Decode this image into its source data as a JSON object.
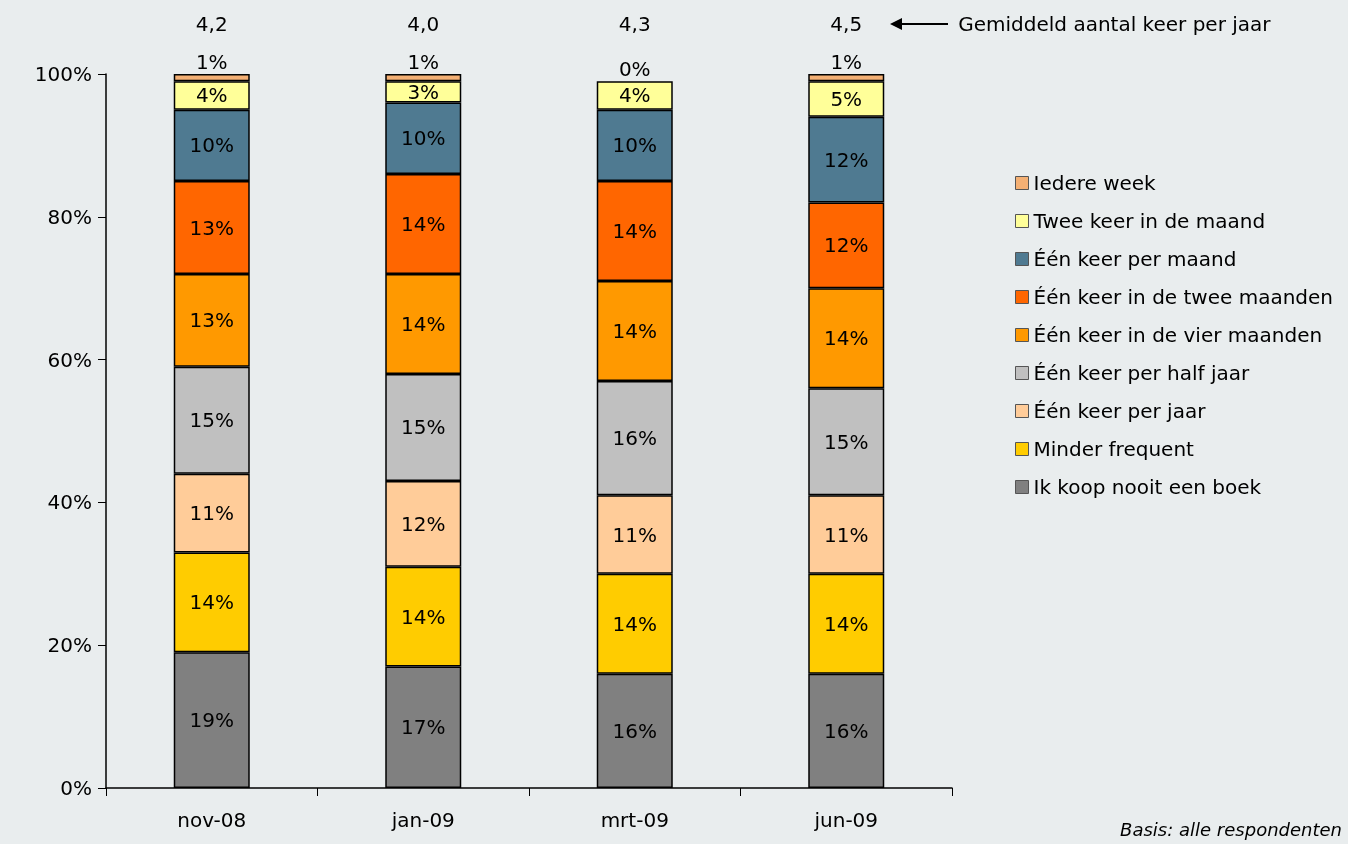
{
  "chart_data": {
    "type": "bar",
    "stacked": true,
    "categories": [
      "nov-08",
      "jan-09",
      "mrt-09",
      "jun-09"
    ],
    "series": [
      {
        "name": "Ik koop nooit een boek",
        "color": "#808080",
        "values": [
          19,
          17,
          16,
          16
        ],
        "value_labels": [
          "19%",
          "17%",
          "16%",
          "16%"
        ]
      },
      {
        "name": "Minder frequent",
        "color": "#ffcc00",
        "values": [
          14,
          14,
          14,
          14
        ],
        "value_labels": [
          "14%",
          "14%",
          "14%",
          "14%"
        ]
      },
      {
        "name": "Één keer per jaar",
        "color": "#ffcc99",
        "values": [
          11,
          12,
          11,
          11
        ],
        "value_labels": [
          "11%",
          "12%",
          "11%",
          "11%"
        ]
      },
      {
        "name": "Één keer per half jaar",
        "color": "#c0c0c0",
        "values": [
          15,
          15,
          16,
          15
        ],
        "value_labels": [
          "15%",
          "15%",
          "16%",
          "15%"
        ]
      },
      {
        "name": "Één keer in de vier maanden",
        "color": "#ff9900",
        "values": [
          13,
          14,
          14,
          14
        ],
        "value_labels": [
          "13%",
          "14%",
          "14%",
          "14%"
        ]
      },
      {
        "name": "Één keer in de twee maanden",
        "color": "#ff6600",
        "values": [
          13,
          14,
          14,
          12
        ],
        "value_labels": [
          "13%",
          "14%",
          "14%",
          "12%"
        ]
      },
      {
        "name": "Één keer per maand",
        "color": "#4f7a91",
        "values": [
          10,
          10,
          10,
          12
        ],
        "value_labels": [
          "10%",
          "10%",
          "10%",
          "12%"
        ]
      },
      {
        "name": "Twee keer in de maand",
        "color": "#ffff99",
        "values": [
          4,
          3,
          4,
          5
        ],
        "value_labels": [
          "4%",
          "3%",
          "4%",
          "5%"
        ]
      },
      {
        "name": "Iedere week",
        "color": "#f4b074",
        "values": [
          1,
          1,
          0,
          1
        ],
        "value_labels": [
          "1%",
          "1%",
          "0%",
          "1%"
        ]
      }
    ],
    "ylim": [
      0,
      100
    ],
    "yticks": [
      {
        "value": 0,
        "label": "0%"
      },
      {
        "value": 20,
        "label": "20%"
      },
      {
        "value": 40,
        "label": "40%"
      },
      {
        "value": 60,
        "label": "60%"
      },
      {
        "value": 80,
        "label": "80%"
      },
      {
        "value": 100,
        "label": "100%"
      }
    ],
    "grid": false,
    "legend": "right",
    "annotations": [
      "4,2",
      "4,0",
      "4,3",
      "4,5",
      "Gemiddeld aantal keer per jaar",
      "Basis: alle respondenten"
    ]
  }
}
